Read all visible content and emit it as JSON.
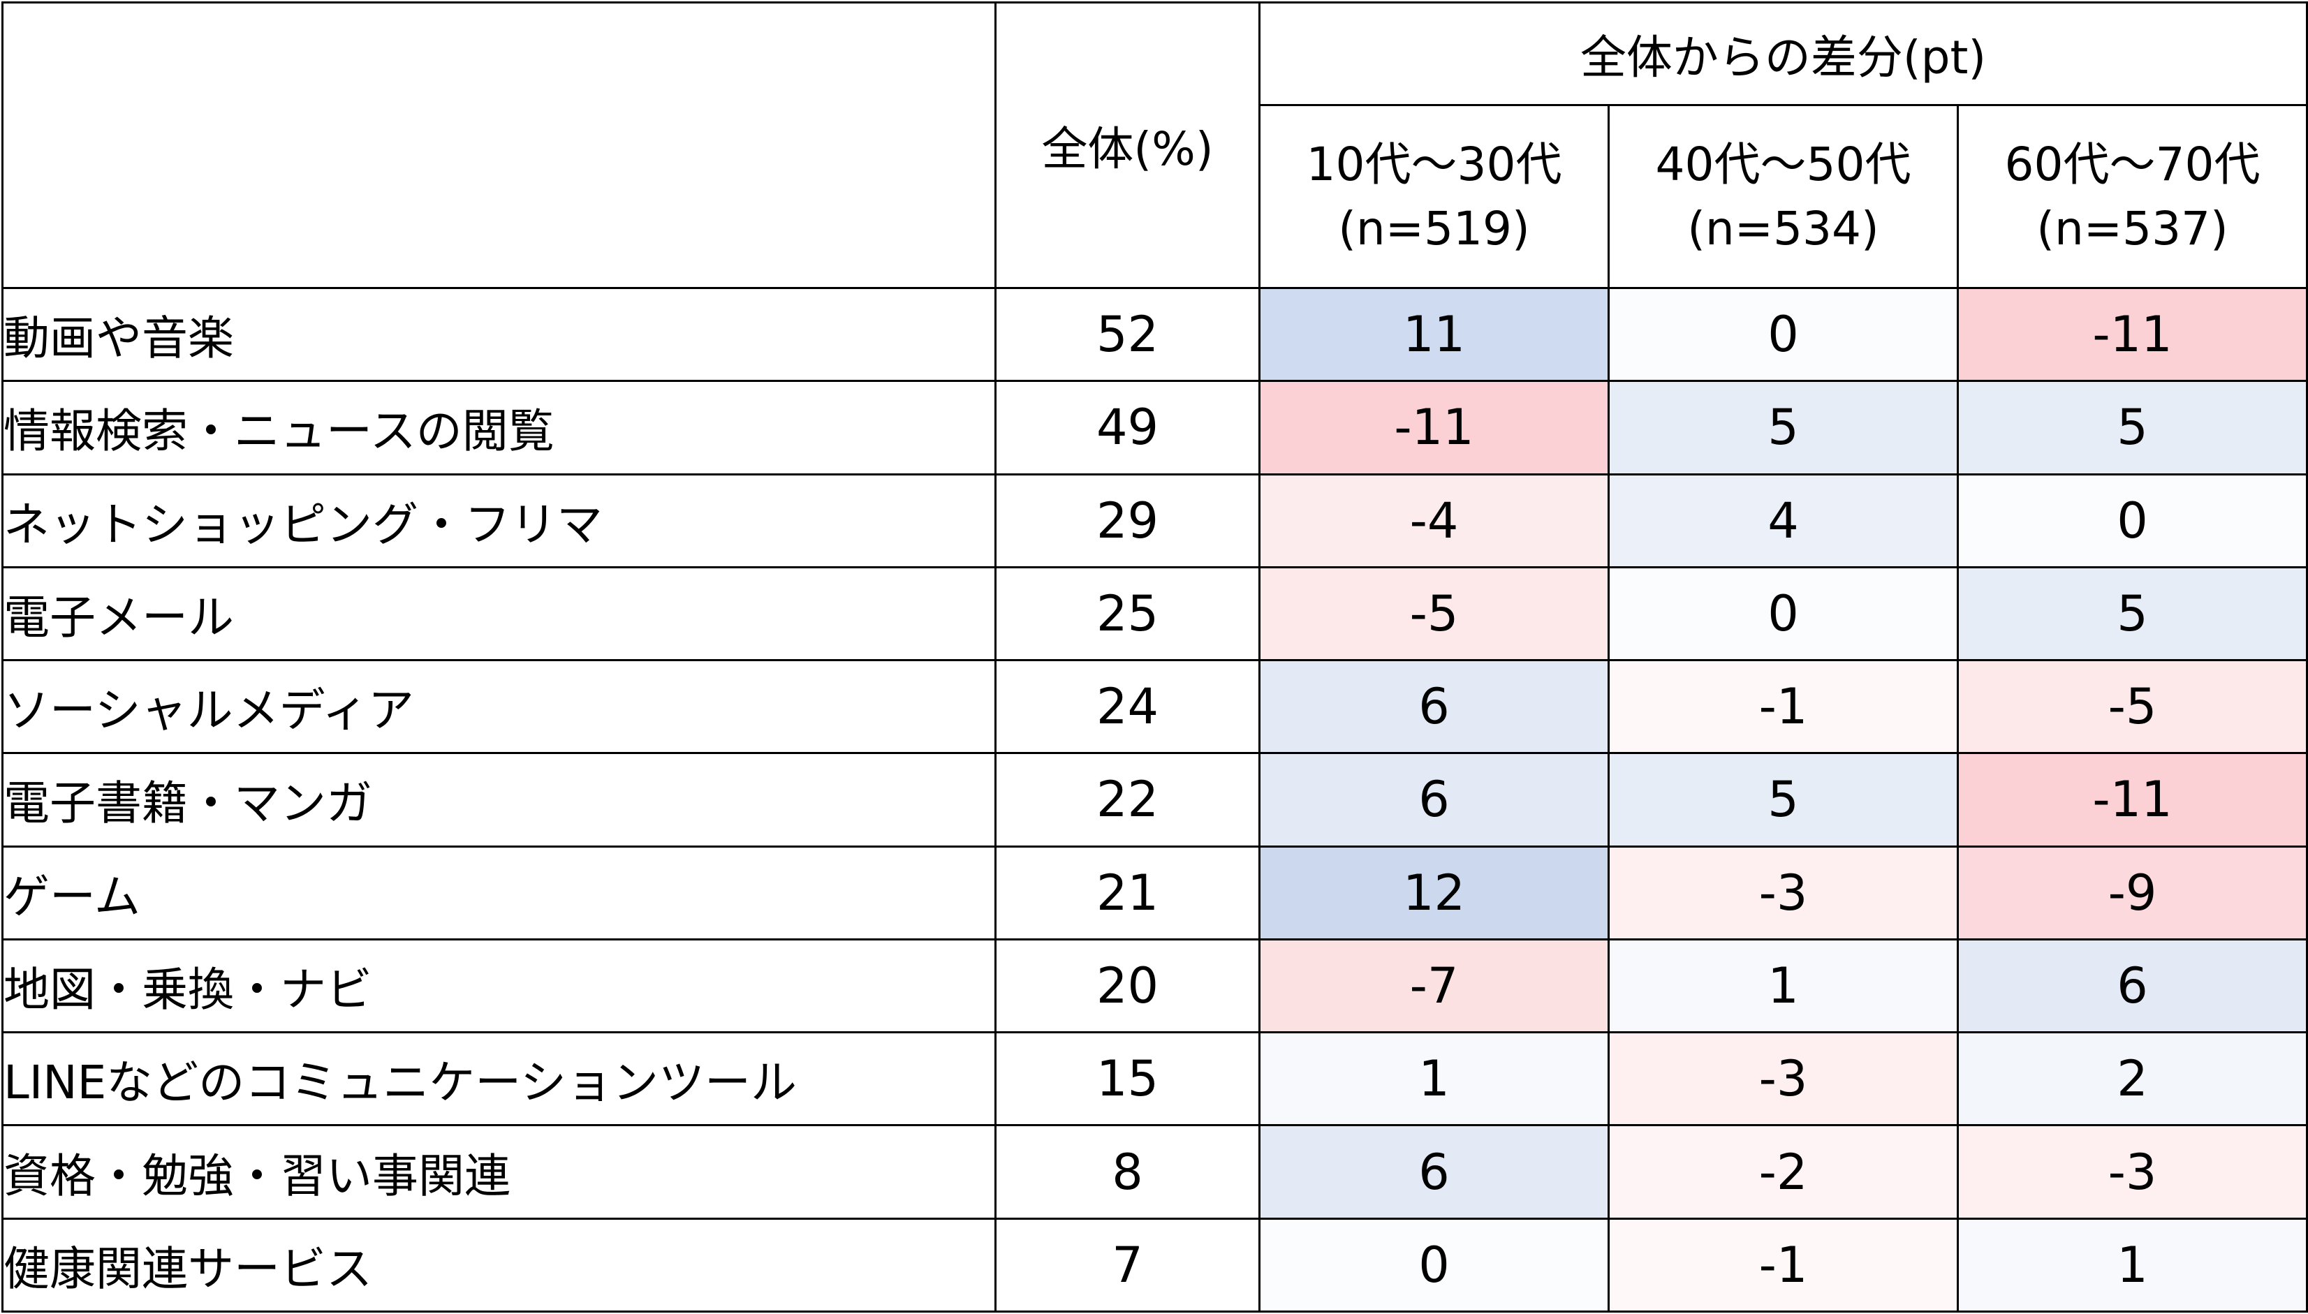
{
  "table": {
    "corner_label": "",
    "total_header": "全体(%)",
    "group_header": "全体からの差分(pt)",
    "segments": [
      {
        "label": "10代～30代",
        "n": "(n=519)"
      },
      {
        "label": "40代～50代",
        "n": "(n=534)"
      },
      {
        "label": "60代～70代",
        "n": "(n=537)"
      }
    ],
    "colors": {
      "positive_base": "#4472c4",
      "negative_base": "#f04e5e",
      "neutral": "#ffffff",
      "border": "#000000"
    }
  },
  "chart_data": {
    "type": "table",
    "columns": [
      "全体(%)",
      "10代～30代 (n=519)",
      "40代～50代 (n=534)",
      "60代～70代 (n=537)"
    ],
    "rows": [
      {
        "label": "動画や音楽",
        "total": "52",
        "diffs": [
          "11",
          "0",
          "-11"
        ]
      },
      {
        "label": "情報検索・ニュースの閲覧",
        "total": "49",
        "diffs": [
          "-11",
          "5",
          "5"
        ]
      },
      {
        "label": "ネットショッピング・フリマ",
        "total": "29",
        "diffs": [
          "-4",
          "4",
          "0"
        ]
      },
      {
        "label": "電子メール",
        "total": "25",
        "diffs": [
          "-5",
          "0",
          "5"
        ]
      },
      {
        "label": "ソーシャルメディア",
        "total": "24",
        "diffs": [
          "6",
          "-1",
          "-5"
        ]
      },
      {
        "label": "電子書籍・マンガ",
        "total": "22",
        "diffs": [
          "6",
          "5",
          "-11"
        ]
      },
      {
        "label": "ゲーム",
        "total": "21",
        "diffs": [
          "12",
          "-3",
          "-9"
        ]
      },
      {
        "label": "地図・乗換・ナビ",
        "total": "20",
        "diffs": [
          "-7",
          "1",
          "6"
        ]
      },
      {
        "label": "LINEなどのコミュニケーションツール",
        "total": "15",
        "diffs": [
          "1",
          "-3",
          "2"
        ]
      },
      {
        "label": "資格・勉強・習い事関連",
        "total": "8",
        "diffs": [
          "6",
          "-2",
          "-3"
        ]
      },
      {
        "label": "健康関連サービス",
        "total": "7",
        "diffs": [
          "0",
          "-1",
          "1"
        ]
      }
    ]
  }
}
